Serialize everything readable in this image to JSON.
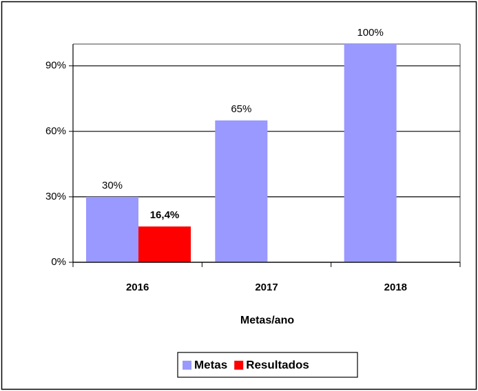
{
  "chart_data": {
    "type": "bar",
    "categories": [
      "2016",
      "2017",
      "2018"
    ],
    "series": [
      {
        "name": "Metas",
        "color": "#9999ff",
        "values": [
          30,
          65,
          100
        ],
        "value_labels": [
          "30%",
          "65%",
          "100%"
        ]
      },
      {
        "name": "Resultados",
        "color": "#ff0000",
        "values": [
          16.4,
          null,
          null
        ],
        "value_labels": [
          "16,4%",
          null,
          null
        ]
      }
    ],
    "x_label": "Metas/ano",
    "ylim": [
      0,
      100
    ],
    "yticks": [
      {
        "value": 0,
        "label": "0%"
      },
      {
        "value": 30,
        "label": "30%"
      },
      {
        "value": 60,
        "label": "60%"
      },
      {
        "value": 90,
        "label": "90%"
      }
    ],
    "grid": true,
    "legend": "bottom"
  }
}
